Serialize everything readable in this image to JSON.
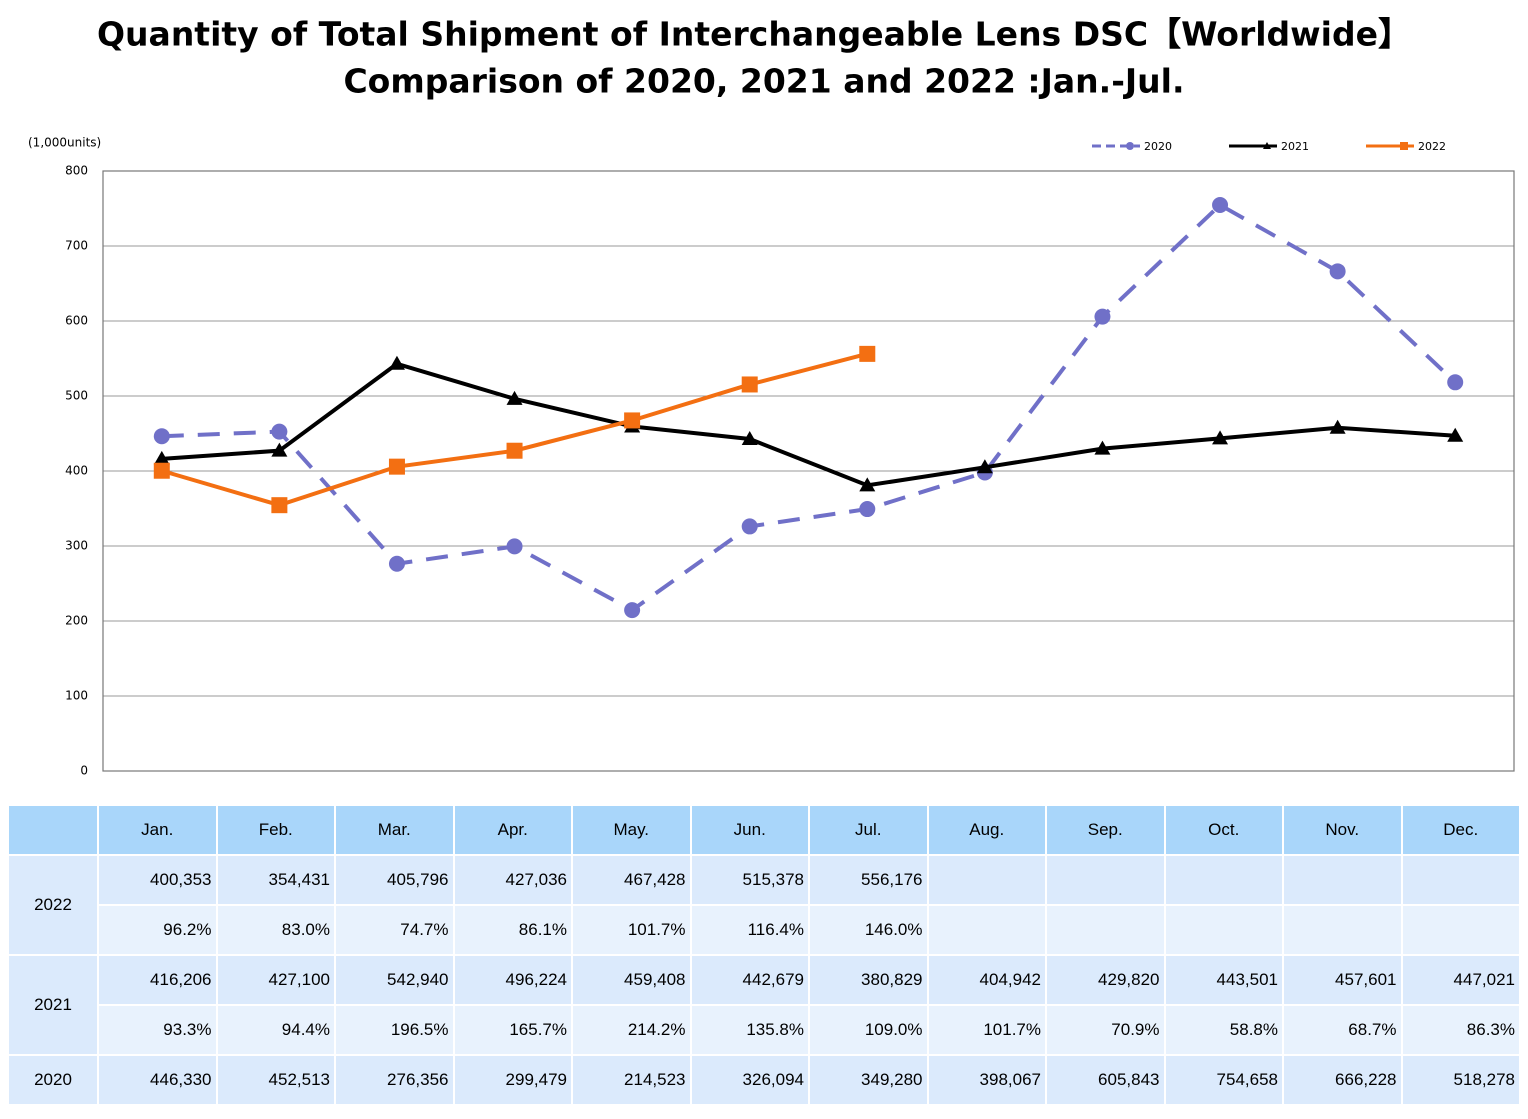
{
  "chart_data": {
    "type": "line",
    "title": "Quantity of Total Shipment of Interchangeable Lens DSC【Worldwide】",
    "subtitle": "Comparison of 2020, 2021 and 2022 :Jan.-Jul.",
    "y_label": "(1,000units)",
    "categories": [
      "Jan.",
      "Feb.",
      "Mar.",
      "Apr.",
      "May.",
      "Jun.",
      "Jul.",
      "Aug.",
      "Sep.",
      "Oct.",
      "Nov.",
      "Dec."
    ],
    "ylim": [
      0,
      800
    ],
    "yticks": [
      0,
      100,
      200,
      300,
      400,
      500,
      600,
      700,
      800
    ],
    "grid": true,
    "series": [
      {
        "name": "2020",
        "color": "#7070c8",
        "marker": "circle",
        "dashed": true,
        "values": [
          446.33,
          452.513,
          276.356,
          299.479,
          214.523,
          326.094,
          349.28,
          398.067,
          605.843,
          754.658,
          666.228,
          518.278
        ],
        "value_labels": [
          "446,330",
          "452,513",
          "276,356",
          "299,479",
          "214,523",
          "326,094",
          "349,280",
          "398,067",
          "605,843",
          "754,658",
          "666,228",
          "518,278"
        ]
      },
      {
        "name": "2021",
        "color": "#000000",
        "marker": "triangle",
        "dashed": false,
        "values": [
          416.206,
          427.1,
          542.94,
          496.224,
          459.408,
          442.679,
          380.829,
          404.942,
          429.82,
          443.501,
          457.601,
          447.021
        ],
        "value_labels": [
          "416,206",
          "427,100",
          "542,940",
          "496,224",
          "459,408",
          "442,679",
          "380,829",
          "404,942",
          "429,820",
          "443,501",
          "457,601",
          "447,021"
        ],
        "ratio_labels": [
          "93.3%",
          "94.4%",
          "196.5%",
          "165.7%",
          "214.2%",
          "135.8%",
          "109.0%",
          "101.7%",
          "70.9%",
          "58.8%",
          "68.7%",
          "86.3%"
        ]
      },
      {
        "name": "2022",
        "color": "#f36f12",
        "marker": "square",
        "dashed": false,
        "values": [
          400.353,
          354.431,
          405.796,
          427.036,
          467.428,
          515.378,
          556.176,
          null,
          null,
          null,
          null,
          null
        ],
        "value_labels": [
          "400,353",
          "354,431",
          "405,796",
          "427,036",
          "467,428",
          "515,378",
          "556,176",
          null,
          null,
          null,
          null,
          null
        ],
        "ratio_labels": [
          "96.2%",
          "83.0%",
          "74.7%",
          "86.1%",
          "101.7%",
          "116.4%",
          "146.0%",
          null,
          null,
          null,
          null,
          null
        ]
      }
    ]
  }
}
